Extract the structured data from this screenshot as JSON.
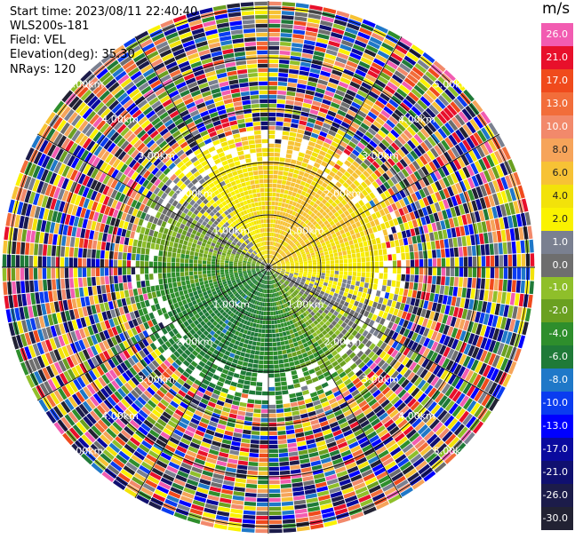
{
  "info": {
    "start_time": "Start time: 2023/08/11 22:40:40",
    "site": "WLS200s-181",
    "field": "Field: VEL",
    "elevation": "Elevation(deg): 35.30",
    "nrays": "NRays: 120"
  },
  "colorbar": {
    "unit": "m/s",
    "levels": [
      {
        "label": "26.0",
        "color": "#f25cb1"
      },
      {
        "label": "21.0",
        "color": "#e8102b"
      },
      {
        "label": "17.0",
        "color": "#f04a1c"
      },
      {
        "label": "13.0",
        "color": "#f26d3a"
      },
      {
        "label": "10.0",
        "color": "#f2896b"
      },
      {
        "label": "8.0",
        "color": "#f6a45a"
      },
      {
        "label": "6.0",
        "color": "#f7c235"
      },
      {
        "label": "4.0",
        "color": "#f2e20a"
      },
      {
        "label": "2.0",
        "color": "#faf200"
      },
      {
        "label": "1.0",
        "color": "#7a8090"
      },
      {
        "label": "0.0",
        "color": "#6e6e6e"
      },
      {
        "label": "-1.0",
        "color": "#8fbf2a"
      },
      {
        "label": "-2.0",
        "color": "#6aa020"
      },
      {
        "label": "-4.0",
        "color": "#2e8e2c"
      },
      {
        "label": "-6.0",
        "color": "#1f7a38"
      },
      {
        "label": "-8.0",
        "color": "#1f78c8"
      },
      {
        "label": "-10.0",
        "color": "#0a3cf0"
      },
      {
        "label": "-13.0",
        "color": "#0000ff"
      },
      {
        "label": "-17.0",
        "color": "#0a0a9e"
      },
      {
        "label": "-21.0",
        "color": "#101070"
      },
      {
        "label": "-26.0",
        "color": "#1c1c4a"
      },
      {
        "label": "-30.0",
        "color": "#222233"
      }
    ]
  },
  "chart_data": {
    "type": "polar-ppi",
    "field": "VEL",
    "unit": "m/s",
    "elevation_deg": 35.3,
    "n_rays": 120,
    "range_ring_labels": [
      "1.00km",
      "2.00km",
      "3.00km",
      "4.00km",
      "5.00km"
    ],
    "range_rings_km": [
      1,
      2,
      3,
      4,
      5
    ]
  }
}
